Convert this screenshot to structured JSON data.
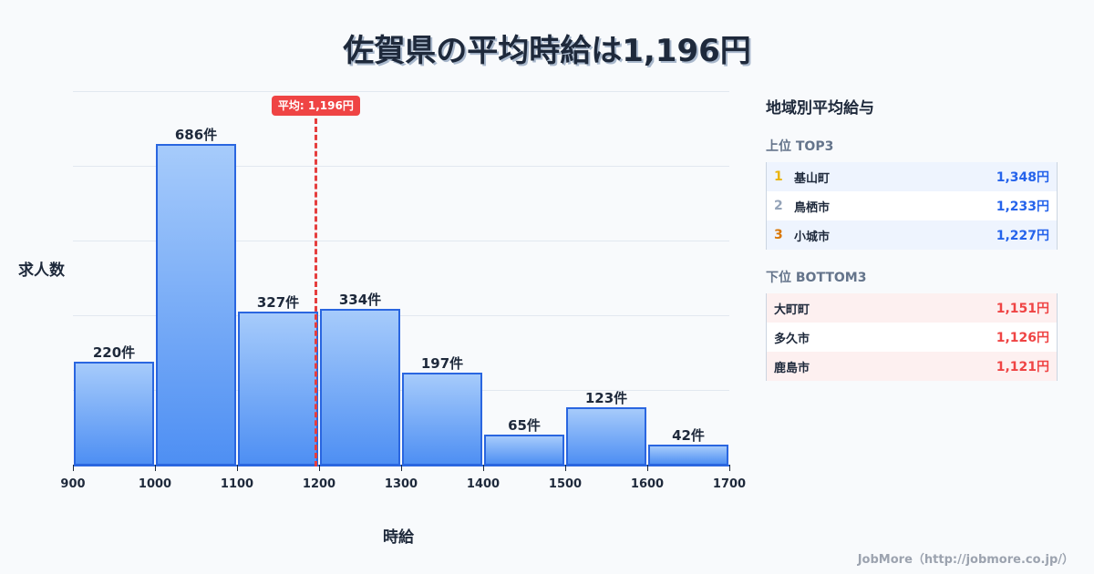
{
  "title": "佐賀県の平均時給は1,196円",
  "chart_data": {
    "type": "bar",
    "title": "佐賀県の平均時給は1,196円",
    "xlabel": "時給",
    "ylabel": "求人数",
    "bins": [
      [
        900,
        1000
      ],
      [
        1000,
        1100
      ],
      [
        1100,
        1200
      ],
      [
        1200,
        1300
      ],
      [
        1300,
        1400
      ],
      [
        1400,
        1500
      ],
      [
        1500,
        1600
      ],
      [
        1600,
        1700
      ]
    ],
    "categories": [
      "900-1000",
      "1000-1100",
      "1100-1200",
      "1200-1300",
      "1300-1400",
      "1400-1500",
      "1500-1600",
      "1600-1700"
    ],
    "values": [
      220,
      686,
      327,
      334,
      197,
      65,
      123,
      42
    ],
    "value_labels": [
      "220件",
      "686件",
      "327件",
      "334件",
      "197件",
      "65件",
      "123件",
      "42件"
    ],
    "x_ticks": [
      "900",
      "1000",
      "1100",
      "1200",
      "1300",
      "1400",
      "1500",
      "1600",
      "1700"
    ],
    "xlim": [
      900,
      1700
    ],
    "ylim": [
      0,
      800
    ],
    "grid": true,
    "mean": 1196,
    "mean_label": "平均: 1,196円",
    "colors": {
      "bar_fill_top": "#a6cbfb",
      "bar_fill_bottom": "#4e8ff3",
      "bar_border": "#2a66e0",
      "mean_line": "#e53e3e"
    }
  },
  "panel": {
    "title": "地域別平均給与",
    "top": {
      "label": "上位 TOP3",
      "items": [
        {
          "rank": "1",
          "name": "基山町",
          "value": "1,348円",
          "rank_color": "#eab308"
        },
        {
          "rank": "2",
          "name": "鳥栖市",
          "value": "1,233円",
          "rank_color": "#94a3b8"
        },
        {
          "rank": "3",
          "name": "小城市",
          "value": "1,227円",
          "rank_color": "#d97706"
        }
      ]
    },
    "bottom": {
      "label": "下位 BOTTOM3",
      "items": [
        {
          "name": "大町町",
          "value": "1,151円"
        },
        {
          "name": "多久市",
          "value": "1,126円"
        },
        {
          "name": "鹿島市",
          "value": "1,121円"
        }
      ]
    }
  },
  "footer": "JobMore（http://jobmore.co.jp/）"
}
